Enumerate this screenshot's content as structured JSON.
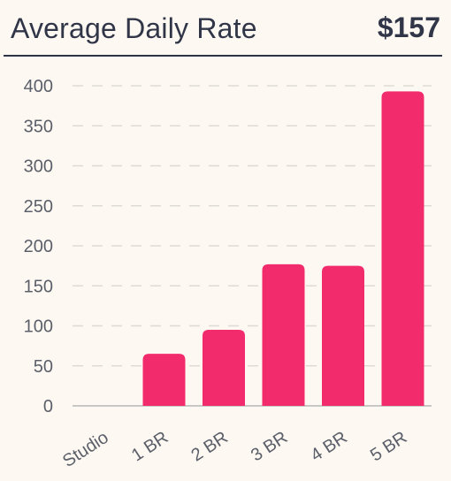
{
  "header": {
    "title": "Average Daily Rate",
    "value": "$157"
  },
  "colors": {
    "bar": "#f22b6d",
    "text": "#303648",
    "axis_text": "#5b5f6a",
    "grid": "#dedbd6",
    "baseline": "#b7b7b7",
    "background": "#fdf8f1"
  },
  "chart_data": {
    "type": "bar",
    "categories": [
      "Studio",
      "1 BR",
      "2 BR",
      "3 BR",
      "4 BR",
      "5 BR"
    ],
    "values": [
      0,
      65,
      95,
      177,
      175,
      393
    ],
    "yticks": [
      0,
      50,
      100,
      150,
      200,
      250,
      300,
      350,
      400
    ],
    "ylim": [
      0,
      400
    ],
    "xlabel": "",
    "ylabel": "",
    "grid": true,
    "grid_style": "dashed"
  }
}
